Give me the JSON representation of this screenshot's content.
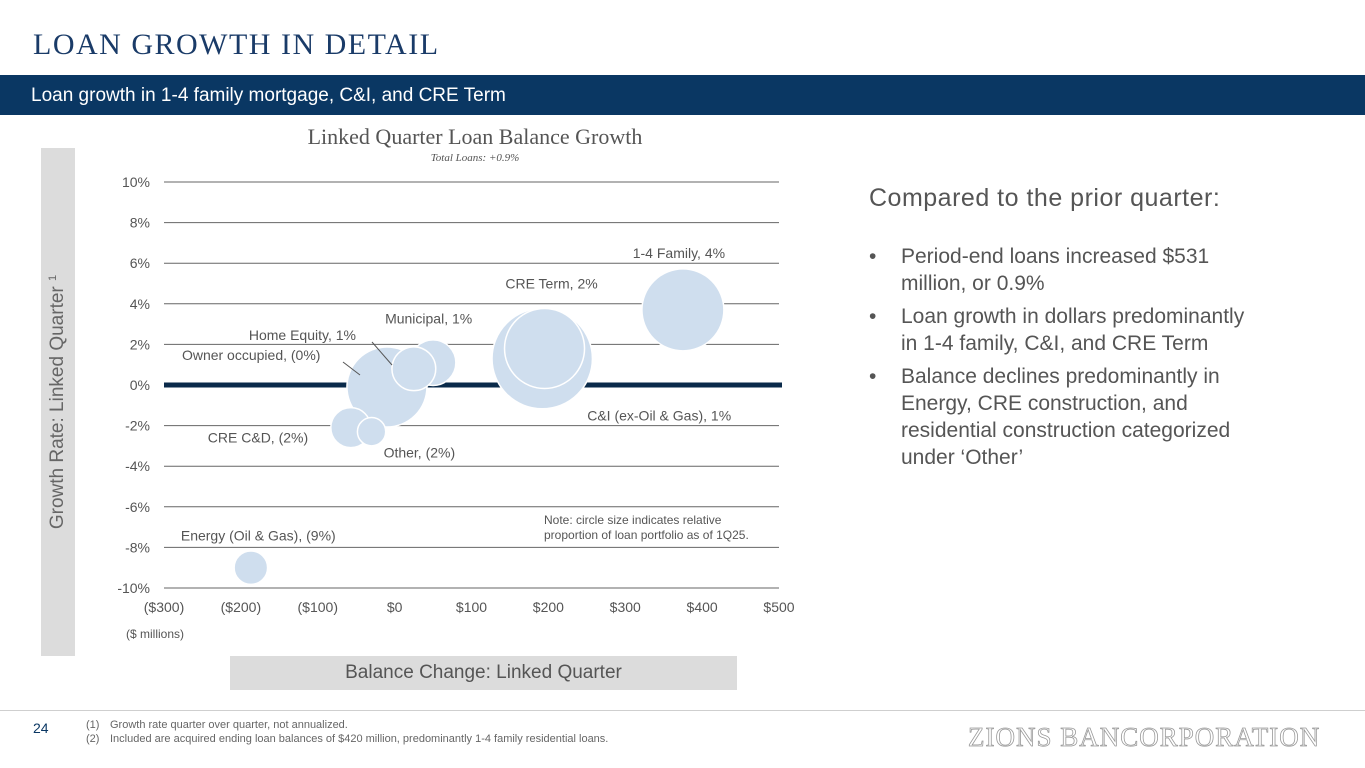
{
  "title": "LOAN GROWTH IN DETAIL",
  "banner": "Loan growth in 1-4 family mortgage, C&I, and CRE Term",
  "y_panel": {
    "label": "Growth Rate: Linked Quarter",
    "superscript": "1"
  },
  "x_panel": {
    "label": "Balance Change: Linked Quarter"
  },
  "chart_data": {
    "type": "scatter",
    "title": "Linked Quarter Loan Balance Growth",
    "subtitle": "Total Loans: +0.9%",
    "x_unit_note": "($ millions)",
    "xlim": [
      -300,
      500
    ],
    "ylim": [
      -10,
      10
    ],
    "x_ticks": [
      {
        "value": -300,
        "label": "($300)"
      },
      {
        "value": -200,
        "label": "($200)"
      },
      {
        "value": -100,
        "label": "($100)"
      },
      {
        "value": 0,
        "label": "$0"
      },
      {
        "value": 100,
        "label": "$100"
      },
      {
        "value": 200,
        "label": "$200"
      },
      {
        "value": 300,
        "label": "$300"
      },
      {
        "value": 400,
        "label": "$400"
      },
      {
        "value": 500,
        "label": "$500"
      }
    ],
    "y_ticks": [
      {
        "value": 10,
        "label": "10%"
      },
      {
        "value": 8,
        "label": "8%"
      },
      {
        "value": 6,
        "label": "6%"
      },
      {
        "value": 4,
        "label": "4%"
      },
      {
        "value": 2,
        "label": "2%"
      },
      {
        "value": 0,
        "label": "0%"
      },
      {
        "value": -2,
        "label": "-2%"
      },
      {
        "value": -4,
        "label": "-4%"
      },
      {
        "value": -6,
        "label": "-6%"
      },
      {
        "value": -8,
        "label": "-8%"
      },
      {
        "value": -10,
        "label": "-10%"
      }
    ],
    "grid": true,
    "zero_line": true,
    "bubble_color": "#cfdeee",
    "zero_line_color": "#0a2a4a",
    "points": [
      {
        "label": "Energy (Oil & Gas), (9%)",
        "x": -187,
        "y": -9.0,
        "size": 0.7
      },
      {
        "label": "CRE C&D, (2%)",
        "x": -57,
        "y": -2.1,
        "size": 1.0
      },
      {
        "label": "Other, (2%)",
        "x": -30,
        "y": -2.3,
        "size": 0.5
      },
      {
        "label": "Owner occupied, (0%)",
        "x": -10,
        "y": -0.1,
        "size": 4.0
      },
      {
        "label": "Home Equity, 1%",
        "x": 25,
        "y": 0.8,
        "size": 1.2
      },
      {
        "label": "Municipal, 1%",
        "x": 50,
        "y": 1.1,
        "size": 1.3
      },
      {
        "label": "C&I (ex-Oil & Gas), 1%",
        "x": 192,
        "y": 1.3,
        "size": 6.3
      },
      {
        "label": "CRE Term, 2%",
        "x": 195,
        "y": 1.8,
        "size": 4.0
      },
      {
        "label": "1-4 Family, 4%",
        "x": 375,
        "y": 3.7,
        "size": 4.2
      }
    ],
    "note": [
      "Note: circle size indicates relative",
      "proportion of loan portfolio as of 1Q25."
    ]
  },
  "right_panel": {
    "heading": "Compared to the prior quarter:",
    "bullet_char": "•",
    "bullets": [
      "Period-end loans increased $531 million, or 0.9%",
      "Loan growth in dollars predominantly in 1-4 family, C&I, and CRE Term",
      "Balance declines predominantly in Energy, CRE construction, and residential construction categorized under ‘Other’"
    ]
  },
  "footer": {
    "page_number": "24",
    "footnotes": [
      {
        "num": "(1)",
        "text": "Growth rate quarter over quarter, not annualized."
      },
      {
        "num": "(2)",
        "text": "Included are acquired ending loan balances of $420 million, predominantly 1-4 family residential loans."
      }
    ],
    "logo": "ZIONS BANCORPORATION"
  }
}
